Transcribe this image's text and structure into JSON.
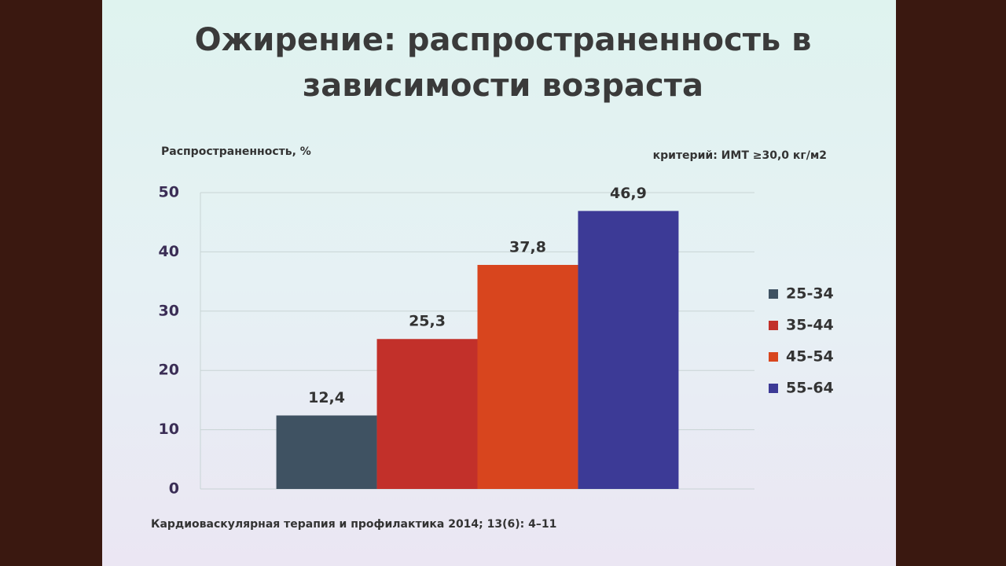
{
  "chart_data": {
    "type": "bar",
    "title": "Ожирение: распространенность в зависимости возраста",
    "y_label": "Распространенность, %",
    "annotation": "критерий: ИМТ ≥30,0 кг/м2",
    "source": "Кардиоваскулярная терапия и профилактика 2014; 13(6): 4–11",
    "categories": [
      null
    ],
    "series": [
      {
        "name": "25-34",
        "color": "#3f5262",
        "values": [
          12.4
        ],
        "value_labels": [
          "12,4"
        ]
      },
      {
        "name": "35-44",
        "color": "#c2302a",
        "values": [
          25.3
        ],
        "value_labels": [
          "25,3"
        ]
      },
      {
        "name": "45-54",
        "color": "#d8451e",
        "values": [
          37.8
        ],
        "value_labels": [
          "37,8"
        ]
      },
      {
        "name": "55-64",
        "color": "#3c3a96",
        "values": [
          46.9
        ],
        "value_labels": [
          "46,9"
        ]
      }
    ],
    "ylim": [
      0,
      50
    ],
    "yticks": [
      0,
      10,
      20,
      30,
      40,
      50
    ],
    "grid": true,
    "legend": "right"
  }
}
